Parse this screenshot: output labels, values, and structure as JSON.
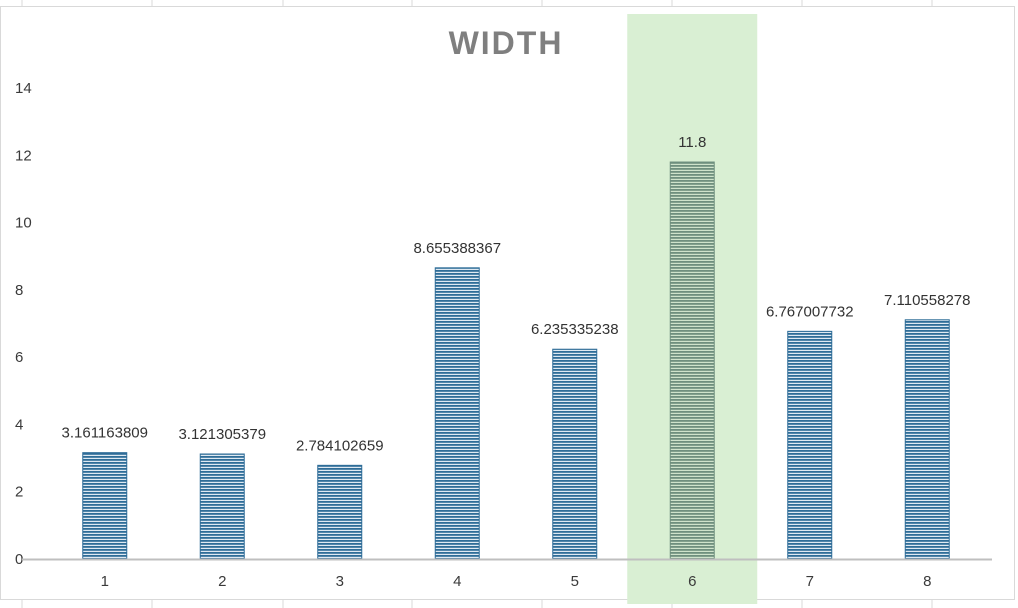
{
  "chart_data": {
    "type": "bar",
    "title": "WIDTH",
    "xlabel": "",
    "ylabel": "",
    "categories": [
      "1",
      "2",
      "3",
      "4",
      "5",
      "6",
      "7",
      "8"
    ],
    "values": [
      3.161163809,
      3.121305379,
      2.784102659,
      8.655388367,
      6.235335238,
      11.8,
      6.767007732,
      7.110558278
    ],
    "data_labels": [
      "3.161163809",
      "3.121305379",
      "2.784102659",
      "8.655388367",
      "6.235335238",
      "11.8",
      "6.767007732",
      "7.110558278"
    ],
    "ylim": [
      0,
      14
    ],
    "yticks": [
      0,
      2,
      4,
      6,
      8,
      10,
      12,
      14
    ],
    "grid": false,
    "legend": "none",
    "highlighted_category": "6",
    "colors": {
      "bar": "#2f6d98",
      "bar_stripe": "#dfe9f2",
      "highlight_band": "#d9efd3",
      "highlight_bar": "#6f8f7e",
      "highlight_text": "#7a9a82",
      "axis": "#bfbfbf",
      "gridline_top": "#d9d9d9"
    }
  }
}
